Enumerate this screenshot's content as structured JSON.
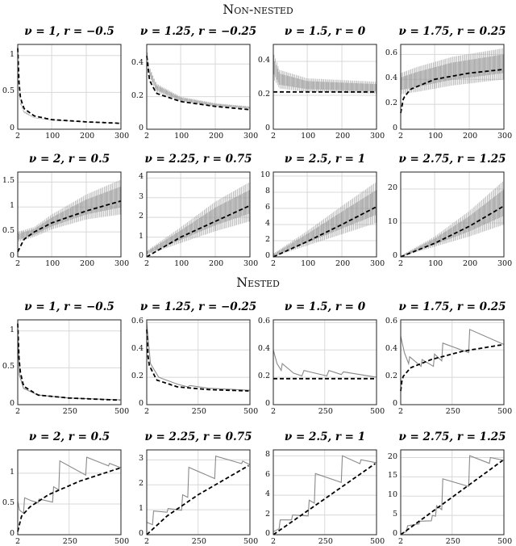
{
  "sections": {
    "top": "Non-nested",
    "bottom": "Nested"
  },
  "chart_data": [
    {
      "type": "line",
      "title": "ν = 1, r = −0.5",
      "group": "Non-nested",
      "xlim": [
        2,
        300
      ],
      "xticks": [
        2,
        100,
        200,
        300
      ],
      "ylim": [
        0,
        1.15
      ],
      "yticks": [
        0,
        0.5,
        1
      ],
      "dashed": [
        [
          2,
          1.1
        ],
        [
          6,
          0.6
        ],
        [
          10,
          0.42
        ],
        [
          20,
          0.28
        ],
        [
          50,
          0.18
        ],
        [
          100,
          0.13
        ],
        [
          200,
          0.1
        ],
        [
          300,
          0.08
        ]
      ],
      "band_upper": [
        [
          2,
          1.0
        ],
        [
          6,
          0.5
        ],
        [
          10,
          0.37
        ],
        [
          20,
          0.25
        ],
        [
          50,
          0.16
        ],
        [
          100,
          0.13
        ],
        [
          200,
          0.1
        ],
        [
          300,
          0.085
        ]
      ],
      "band_lower": [
        [
          2,
          0.9
        ],
        [
          6,
          0.45
        ],
        [
          10,
          0.33
        ],
        [
          20,
          0.22
        ],
        [
          50,
          0.15
        ],
        [
          100,
          0.12
        ],
        [
          200,
          0.095
        ],
        [
          300,
          0.08
        ]
      ]
    },
    {
      "type": "line",
      "title": "ν = 1.25, r = −0.25",
      "group": "Non-nested",
      "xlim": [
        2,
        300
      ],
      "xticks": [
        2,
        100,
        200,
        300
      ],
      "ylim": [
        0,
        0.52
      ],
      "yticks": [
        0,
        0.2,
        0.4
      ],
      "dashed": [
        [
          2,
          0.45
        ],
        [
          10,
          0.3
        ],
        [
          30,
          0.22
        ],
        [
          100,
          0.17
        ],
        [
          200,
          0.14
        ],
        [
          300,
          0.12
        ]
      ],
      "band_upper": [
        [
          2,
          0.5
        ],
        [
          10,
          0.38
        ],
        [
          30,
          0.28
        ],
        [
          100,
          0.2
        ],
        [
          200,
          0.16
        ],
        [
          300,
          0.14
        ]
      ],
      "band_lower": [
        [
          2,
          0.45
        ],
        [
          10,
          0.32
        ],
        [
          30,
          0.23
        ],
        [
          100,
          0.17
        ],
        [
          200,
          0.14
        ],
        [
          300,
          0.125
        ]
      ]
    },
    {
      "type": "line",
      "title": "ν = 1.5, r = 0",
      "group": "Non-nested",
      "xlim": [
        2,
        300
      ],
      "xticks": [
        2,
        100,
        200,
        300
      ],
      "ylim": [
        0,
        0.5
      ],
      "yticks": [
        0,
        0.2,
        0.4
      ],
      "dashed": [
        [
          2,
          0.22
        ],
        [
          300,
          0.22
        ]
      ],
      "band_upper": [
        [
          2,
          0.45
        ],
        [
          20,
          0.35
        ],
        [
          100,
          0.3
        ],
        [
          300,
          0.28
        ]
      ],
      "band_lower": [
        [
          2,
          0.3
        ],
        [
          20,
          0.24
        ],
        [
          100,
          0.22
        ],
        [
          300,
          0.21
        ]
      ]
    },
    {
      "type": "line",
      "title": "ν = 1.75, r = 0.25",
      "group": "Non-nested",
      "xlim": [
        2,
        300
      ],
      "xticks": [
        2,
        100,
        200,
        300
      ],
      "ylim": [
        0,
        0.68
      ],
      "yticks": [
        0,
        0.2,
        0.4,
        0.6
      ],
      "dashed": [
        [
          2,
          0.13
        ],
        [
          10,
          0.25
        ],
        [
          30,
          0.32
        ],
        [
          100,
          0.4
        ],
        [
          200,
          0.45
        ],
        [
          300,
          0.48
        ]
      ],
      "band_upper": [
        [
          2,
          0.45
        ],
        [
          50,
          0.5
        ],
        [
          150,
          0.58
        ],
        [
          300,
          0.65
        ]
      ],
      "band_lower": [
        [
          2,
          0.28
        ],
        [
          50,
          0.3
        ],
        [
          150,
          0.35
        ],
        [
          300,
          0.4
        ]
      ]
    },
    {
      "type": "line",
      "title": "ν = 2, r = 0.5",
      "group": "Non-nested",
      "xlim": [
        2,
        300
      ],
      "xticks": [
        2,
        100,
        200,
        300
      ],
      "ylim": [
        0,
        1.7
      ],
      "yticks": [
        0,
        0.5,
        1,
        1.5
      ],
      "dashed": [
        [
          2,
          0.1
        ],
        [
          20,
          0.35
        ],
        [
          50,
          0.5
        ],
        [
          100,
          0.68
        ],
        [
          200,
          0.92
        ],
        [
          300,
          1.12
        ]
      ],
      "band_upper": [
        [
          2,
          0.5
        ],
        [
          50,
          0.6
        ],
        [
          100,
          0.85
        ],
        [
          200,
          1.25
        ],
        [
          300,
          1.55
        ]
      ],
      "band_lower": [
        [
          2,
          0.3
        ],
        [
          50,
          0.4
        ],
        [
          100,
          0.55
        ],
        [
          200,
          0.75
        ],
        [
          300,
          0.85
        ]
      ]
    },
    {
      "type": "line",
      "title": "ν = 2.25, r = 0.75",
      "group": "Non-nested",
      "xlim": [
        2,
        300
      ],
      "xticks": [
        2,
        100,
        200,
        300
      ],
      "ylim": [
        0,
        4.3
      ],
      "yticks": [
        0,
        1,
        2,
        3,
        4
      ],
      "dashed": [
        [
          2,
          0
        ],
        [
          100,
          1.0
        ],
        [
          200,
          1.8
        ],
        [
          300,
          2.6
        ]
      ],
      "band_upper": [
        [
          2,
          0.3
        ],
        [
          100,
          1.5
        ],
        [
          200,
          2.8
        ],
        [
          300,
          3.8
        ]
      ],
      "band_lower": [
        [
          2,
          0.1
        ],
        [
          100,
          0.7
        ],
        [
          200,
          1.3
        ],
        [
          300,
          1.8
        ]
      ]
    },
    {
      "type": "line",
      "title": "ν = 2.5, r = 1",
      "group": "Non-nested",
      "xlim": [
        2,
        300
      ],
      "xticks": [
        2,
        100,
        200,
        300
      ],
      "ylim": [
        0,
        10.5
      ],
      "yticks": [
        0,
        2,
        4,
        6,
        8,
        10
      ],
      "dashed": [
        [
          2,
          0
        ],
        [
          100,
          1.9
        ],
        [
          200,
          4
        ],
        [
          300,
          6.2
        ]
      ],
      "band_upper": [
        [
          2,
          0.4
        ],
        [
          100,
          3.2
        ],
        [
          200,
          6.3
        ],
        [
          300,
          9.3
        ]
      ],
      "band_lower": [
        [
          2,
          0
        ],
        [
          100,
          1.4
        ],
        [
          200,
          2.8
        ],
        [
          300,
          4.2
        ]
      ]
    },
    {
      "type": "line",
      "title": "ν = 2.75, r = 1.25",
      "group": "Non-nested",
      "xlim": [
        2,
        300
      ],
      "xticks": [
        2,
        100,
        200,
        300
      ],
      "ylim": [
        0,
        25
      ],
      "yticks": [
        0,
        10,
        20
      ],
      "dashed": [
        [
          2,
          0
        ],
        [
          100,
          4
        ],
        [
          200,
          9
        ],
        [
          300,
          15
        ]
      ],
      "band_upper": [
        [
          2,
          0.3
        ],
        [
          100,
          6
        ],
        [
          200,
          13.5
        ],
        [
          300,
          22.5
        ]
      ],
      "band_lower": [
        [
          2,
          0
        ],
        [
          100,
          3
        ],
        [
          200,
          6
        ],
        [
          300,
          9.5
        ]
      ]
    },
    {
      "type": "line",
      "title": "ν = 1, r = −0.5",
      "group": "Nested",
      "xlim": [
        2,
        500
      ],
      "xticks": [
        2,
        250,
        500
      ],
      "ylim": [
        0,
        1.15
      ],
      "yticks": [
        0,
        0.5,
        1
      ],
      "dashed": [
        [
          2,
          1.1
        ],
        [
          10,
          0.5
        ],
        [
          30,
          0.25
        ],
        [
          100,
          0.13
        ],
        [
          250,
          0.09
        ],
        [
          500,
          0.06
        ]
      ],
      "gray": [
        [
          2,
          1.0
        ],
        [
          10,
          0.4
        ],
        [
          30,
          0.22
        ],
        [
          100,
          0.13
        ],
        [
          250,
          0.09
        ],
        [
          500,
          0.065
        ]
      ]
    },
    {
      "type": "line",
      "title": "ν = 1.25, r = −0.25",
      "group": "Nested",
      "xlim": [
        2,
        500
      ],
      "xticks": [
        2,
        250,
        500
      ],
      "ylim": [
        0,
        0.62
      ],
      "yticks": [
        0,
        0.2,
        0.4,
        0.6
      ],
      "dashed": [
        [
          2,
          0.55
        ],
        [
          10,
          0.3
        ],
        [
          50,
          0.18
        ],
        [
          150,
          0.13
        ],
        [
          300,
          0.11
        ],
        [
          500,
          0.1
        ]
      ],
      "gray": [
        [
          2,
          0.6
        ],
        [
          20,
          0.3
        ],
        [
          60,
          0.2
        ],
        [
          150,
          0.15
        ],
        [
          200,
          0.13
        ],
        [
          210,
          0.14
        ],
        [
          300,
          0.12
        ],
        [
          500,
          0.105
        ]
      ]
    },
    {
      "type": "line",
      "title": "ν = 1.5, r = 0",
      "group": "Nested",
      "xlim": [
        2,
        500
      ],
      "xticks": [
        2,
        250,
        500
      ],
      "ylim": [
        0,
        0.62
      ],
      "yticks": [
        0,
        0.2,
        0.4,
        0.6
      ],
      "dashed": [
        [
          2,
          0.19
        ],
        [
          500,
          0.19
        ]
      ],
      "gray": [
        [
          2,
          0.4
        ],
        [
          20,
          0.3
        ],
        [
          40,
          0.25
        ],
        [
          45,
          0.3
        ],
        [
          100,
          0.23
        ],
        [
          140,
          0.21
        ],
        [
          150,
          0.25
        ],
        [
          260,
          0.21
        ],
        [
          270,
          0.25
        ],
        [
          330,
          0.22
        ],
        [
          340,
          0.24
        ],
        [
          500,
          0.2
        ]
      ]
    },
    {
      "type": "line",
      "title": "ν = 1.75, r = 0.25",
      "group": "Nested",
      "xlim": [
        2,
        500
      ],
      "xticks": [
        2,
        250,
        500
      ],
      "ylim": [
        0,
        0.62
      ],
      "yticks": [
        0,
        0.2,
        0.4,
        0.6
      ],
      "dashed": [
        [
          2,
          0.1
        ],
        [
          10,
          0.2
        ],
        [
          50,
          0.27
        ],
        [
          150,
          0.33
        ],
        [
          300,
          0.39
        ],
        [
          500,
          0.44
        ]
      ],
      "gray": [
        [
          2,
          0.5
        ],
        [
          20,
          0.38
        ],
        [
          40,
          0.3
        ],
        [
          45,
          0.35
        ],
        [
          100,
          0.28
        ],
        [
          105,
          0.33
        ],
        [
          160,
          0.28
        ],
        [
          165,
          0.37
        ],
        [
          200,
          0.32
        ],
        [
          205,
          0.45
        ],
        [
          330,
          0.38
        ],
        [
          335,
          0.55
        ],
        [
          500,
          0.44
        ]
      ]
    },
    {
      "type": "line",
      "title": "ν = 2, r = 0.5",
      "group": "Nested",
      "xlim": [
        2,
        500
      ],
      "xticks": [
        2,
        250,
        500
      ],
      "ylim": [
        0,
        1.38
      ],
      "yticks": [
        0,
        0.5,
        1
      ],
      "dashed": [
        [
          2,
          0.05
        ],
        [
          20,
          0.3
        ],
        [
          60,
          0.45
        ],
        [
          150,
          0.65
        ],
        [
          300,
          0.87
        ],
        [
          500,
          1.09
        ]
      ],
      "gray": [
        [
          2,
          0.55
        ],
        [
          10,
          0.4
        ],
        [
          30,
          0.35
        ],
        [
          35,
          0.6
        ],
        [
          70,
          0.55
        ],
        [
          100,
          0.52
        ],
        [
          105,
          0.58
        ],
        [
          170,
          0.53
        ],
        [
          175,
          0.78
        ],
        [
          200,
          0.73
        ],
        [
          205,
          1.2
        ],
        [
          330,
          0.97
        ],
        [
          335,
          1.26
        ],
        [
          440,
          1.12
        ],
        [
          445,
          1.16
        ],
        [
          500,
          1.09
        ]
      ]
    },
    {
      "type": "line",
      "title": "ν = 2.25, r = 0.75",
      "group": "Nested",
      "xlim": [
        2,
        500
      ],
      "xticks": [
        2,
        250,
        500
      ],
      "ylim": [
        0,
        3.4
      ],
      "yticks": [
        0,
        1,
        2,
        3
      ],
      "dashed": [
        [
          2,
          0
        ],
        [
          100,
          0.75
        ],
        [
          250,
          1.6
        ],
        [
          500,
          2.8
        ]
      ],
      "gray": [
        [
          2,
          0.5
        ],
        [
          30,
          0.4
        ],
        [
          35,
          0.95
        ],
        [
          100,
          0.9
        ],
        [
          105,
          1.05
        ],
        [
          170,
          0.98
        ],
        [
          175,
          1.6
        ],
        [
          200,
          1.5
        ],
        [
          205,
          2.7
        ],
        [
          330,
          2.25
        ],
        [
          335,
          3.15
        ],
        [
          460,
          2.85
        ],
        [
          465,
          2.95
        ],
        [
          500,
          2.8
        ]
      ]
    },
    {
      "type": "line",
      "title": "ν = 2.5, r = 1",
      "group": "Nested",
      "xlim": [
        2,
        500
      ],
      "xticks": [
        2,
        250,
        500
      ],
      "ylim": [
        0,
        8.6
      ],
      "yticks": [
        0,
        2,
        4,
        6,
        8
      ],
      "dashed": [
        [
          2,
          0
        ],
        [
          500,
          7.3
        ]
      ],
      "gray": [
        [
          2,
          0.3
        ],
        [
          30,
          0.6
        ],
        [
          35,
          1.5
        ],
        [
          90,
          1.5
        ],
        [
          95,
          2
        ],
        [
          170,
          1.9
        ],
        [
          175,
          3.5
        ],
        [
          200,
          3.2
        ],
        [
          205,
          6.2
        ],
        [
          330,
          5.3
        ],
        [
          335,
          8
        ],
        [
          420,
          7.2
        ],
        [
          425,
          7.6
        ],
        [
          500,
          7.3
        ]
      ]
    },
    {
      "type": "line",
      "title": "ν = 2.75, r = 1.25",
      "group": "Nested",
      "xlim": [
        2,
        500
      ],
      "xticks": [
        2,
        250,
        500
      ],
      "ylim": [
        0,
        22
      ],
      "yticks": [
        0,
        5,
        10,
        15,
        20
      ],
      "dashed": [
        [
          2,
          0
        ],
        [
          500,
          19.5
        ]
      ],
      "gray": [
        [
          2,
          0.3
        ],
        [
          30,
          0.8
        ],
        [
          35,
          2.3
        ],
        [
          90,
          2.8
        ],
        [
          95,
          3.5
        ],
        [
          150,
          3.6
        ],
        [
          155,
          5
        ],
        [
          170,
          4.8
        ],
        [
          175,
          7.5
        ],
        [
          200,
          6.5
        ],
        [
          205,
          14.5
        ],
        [
          330,
          12.5
        ],
        [
          335,
          20.5
        ],
        [
          430,
          18.5
        ],
        [
          435,
          20
        ],
        [
          500,
          19.3
        ]
      ]
    }
  ]
}
